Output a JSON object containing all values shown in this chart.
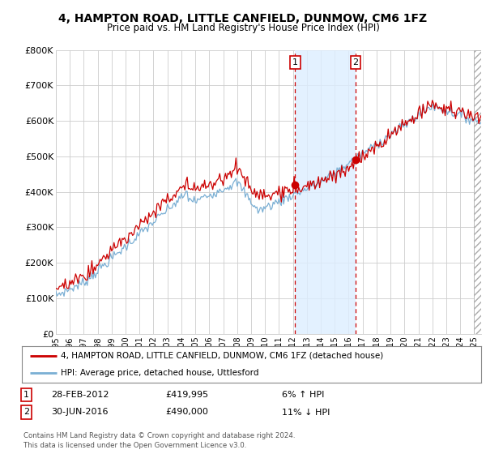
{
  "title": "4, HAMPTON ROAD, LITTLE CANFIELD, DUNMOW, CM6 1FZ",
  "subtitle": "Price paid vs. HM Land Registry's House Price Index (HPI)",
  "ylim": [
    0,
    800000
  ],
  "yticks": [
    0,
    100000,
    200000,
    300000,
    400000,
    500000,
    600000,
    700000,
    800000
  ],
  "ytick_labels": [
    "£0",
    "£100K",
    "£200K",
    "£300K",
    "£400K",
    "£500K",
    "£600K",
    "£700K",
    "£800K"
  ],
  "line1_color": "#cc0000",
  "line2_color": "#7aafd4",
  "shade_color": "#ddeeff",
  "legend_label1": "4, HAMPTON ROAD, LITTLE CANFIELD, DUNMOW, CM6 1FZ (detached house)",
  "legend_label2": "HPI: Average price, detached house, Uttlesford",
  "transaction1_x": 2012.16,
  "transaction1_y": 419995,
  "transaction1_label": "1",
  "transaction1_date": "28-FEB-2012",
  "transaction1_price": "£419,995",
  "transaction1_hpi": "6% ↑ HPI",
  "transaction2_x": 2016.5,
  "transaction2_y": 490000,
  "transaction2_label": "2",
  "transaction2_date": "30-JUN-2016",
  "transaction2_price": "£490,000",
  "transaction2_hpi": "11% ↓ HPI",
  "vline_color": "#cc0000",
  "footer": "Contains HM Land Registry data © Crown copyright and database right 2024.\nThis data is licensed under the Open Government Licence v3.0.",
  "background_color": "#ffffff",
  "grid_color": "#cccccc",
  "xmin": 1995,
  "xmax": 2025.5
}
